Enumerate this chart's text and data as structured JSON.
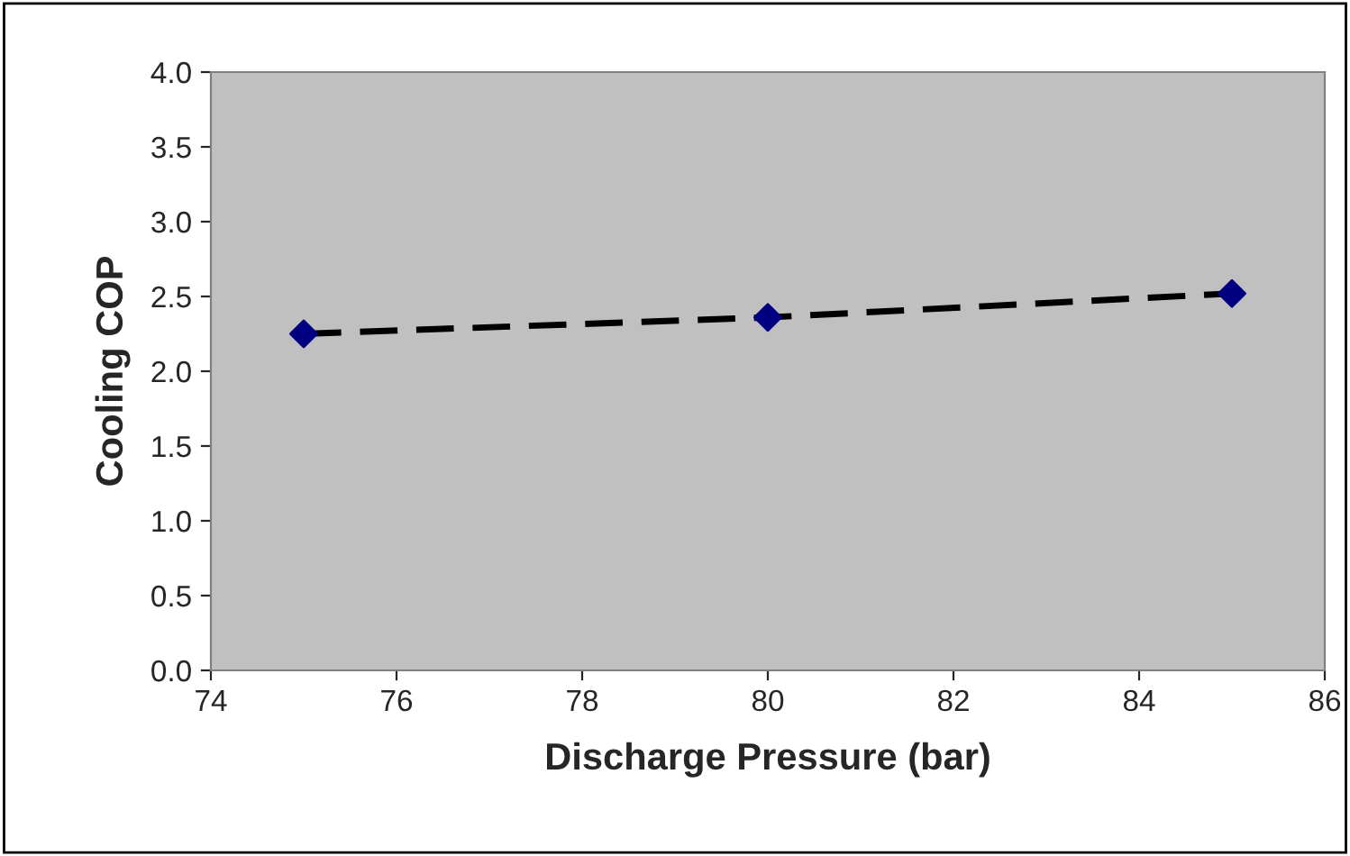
{
  "chart_data": {
    "type": "scatter",
    "xlabel": "Discharge Pressure (bar)",
    "ylabel": "Cooling COP",
    "x": [
      75,
      80,
      85
    ],
    "series": [
      {
        "type": "line",
        "color": "#000000",
        "values": [
          2.25,
          2.36,
          2.52
        ],
        "line_style": "dashed",
        "marker": "none"
      },
      {
        "type": "scatter",
        "color": "#000080",
        "values": [
          2.25,
          2.36,
          2.52
        ],
        "marker": "diamond"
      }
    ],
    "xlim": [
      74,
      86
    ],
    "xticks": [
      74,
      76,
      78,
      80,
      82,
      84,
      86
    ],
    "ylim": [
      0,
      4
    ],
    "yticks": [
      {
        "value": 0,
        "label": "0.0"
      },
      {
        "value": 0.5,
        "label": "0.5"
      },
      {
        "value": 1,
        "label": "1.0"
      },
      {
        "value": 1.5,
        "label": "1.5"
      },
      {
        "value": 2,
        "label": "2.0"
      },
      {
        "value": 2.5,
        "label": "2.5"
      },
      {
        "value": 3,
        "label": "3.0"
      },
      {
        "value": 3.5,
        "label": "3.5"
      },
      {
        "value": 4,
        "label": "4.0"
      }
    ],
    "grid": false
  }
}
